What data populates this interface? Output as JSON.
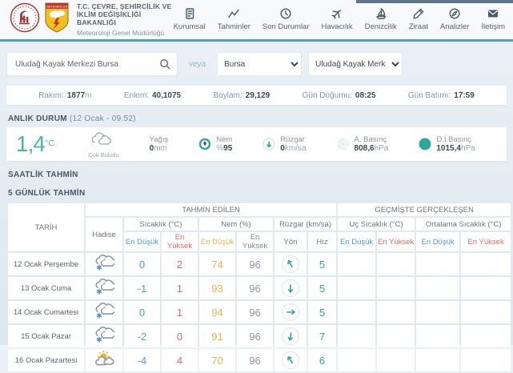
{
  "brand": {
    "ministry": "T.C. ÇEVRE, ŞEHİRCİLİK VE İKLİM DEĞİŞİKLİĞİ BAKANLIĞI",
    "agency": "Meteoroloji Genel Müdürlüğü",
    "shield_text": "METEOROLOJİ"
  },
  "nav": {
    "items": [
      {
        "label": "Kurumsal",
        "icon": "building-icon"
      },
      {
        "label": "Tahminler",
        "icon": "chart-icon"
      },
      {
        "label": "Son Durumlar",
        "icon": "clock-icon"
      },
      {
        "label": "Havacılık",
        "icon": "plane-icon"
      },
      {
        "label": "Denizcilik",
        "icon": "sailboat-icon"
      },
      {
        "label": "Ziraat",
        "icon": "pencil-icon"
      },
      {
        "label": "Analizler",
        "icon": "compass-icon"
      },
      {
        "label": "İletişim",
        "icon": "mail-icon"
      }
    ]
  },
  "search": {
    "value": "Uludağ Kayak Merkezi Bursa",
    "separator": "veya",
    "city_selected": "Bursa",
    "station_selected": "Uludağ Kayak Merkezi"
  },
  "infobar": {
    "items": [
      {
        "label": "Rakım:",
        "value": "1877",
        "unit": "m"
      },
      {
        "label": "Enlem:",
        "value": "40,1075",
        "unit": ""
      },
      {
        "label": "Boylam:",
        "value": "29,129",
        "unit": ""
      },
      {
        "label": "Gün Doğumu:",
        "value": "08:25",
        "unit": ""
      },
      {
        "label": "Gün Batımı:",
        "value": "17:59",
        "unit": ""
      }
    ]
  },
  "current": {
    "title": "ANLIK DURUM",
    "subtitle": "(12 Ocak - 09.52)",
    "temperature": "1,4",
    "temperature_unit": "°C",
    "condition": "Çok Bulutlu",
    "condition_icon": "cloudy-icon",
    "metrics": [
      {
        "label": "Yağış",
        "prefix": "",
        "value": "0",
        "unit": "mm",
        "icon": ""
      },
      {
        "label": "Nem",
        "prefix": "%",
        "value": "95",
        "unit": "",
        "icon": "humidity-icon"
      },
      {
        "label": "Rüzgar",
        "prefix": "",
        "value": "0",
        "unit": "km/sa",
        "icon": "wind-icon"
      },
      {
        "label": "A. Basınç",
        "prefix": "",
        "value": "808,6",
        "unit": "hPa",
        "icon": "pressure-icon"
      },
      {
        "label": "D.İ.Basınç",
        "prefix": "",
        "value": "1015,4",
        "unit": "hPa",
        "icon": "sea-pressure-icon"
      }
    ]
  },
  "sections": {
    "hourly_title": "SAATLİK TAHMİN",
    "daily_title": "5 GÜNLÜK TAHMİN"
  },
  "forecast": {
    "headers": {
      "tarih": "TARİH",
      "tahmin_edilen": "TAHMİN EDİLEN",
      "gecmiste": "GEÇMİŞTE GERÇEKLEŞEN",
      "hadise": "Hadise",
      "sicaklik": "Sıcaklık (°C)",
      "nem": "Nem (%)",
      "ruzgar": "Rüzgar (km/sa)",
      "uc_sicaklik": "Uç Sıcaklık (°C)",
      "ortalama_sicaklik": "Ortalama Sıcaklık (°C)",
      "en_dusuk": "En Düşük",
      "en_yuksek": "En Yüksek",
      "yon": "Yön",
      "hiz": "Hız"
    },
    "rows": [
      {
        "date": "12 Ocak Perşembe",
        "condition_icon": "snowy-cloud-icon",
        "temp_min": "0",
        "temp_max": "2",
        "hum_min": "74",
        "hum_max": "96",
        "wind_dir_deg": -30,
        "wind_speed": "5"
      },
      {
        "date": "13 Ocak Cuma",
        "condition_icon": "snowy-cloud-icon",
        "temp_min": "-1",
        "temp_max": "1",
        "hum_min": "93",
        "hum_max": "96",
        "wind_dir_deg": 180,
        "wind_speed": "5"
      },
      {
        "date": "14 Ocak Cumartesi",
        "condition_icon": "snowy-cloud-icon",
        "temp_min": "0",
        "temp_max": "1",
        "hum_min": "94",
        "hum_max": "96",
        "wind_dir_deg": 90,
        "wind_speed": "5"
      },
      {
        "date": "15 Ocak Pazar",
        "condition_icon": "snowy-cloud-icon",
        "temp_min": "-2",
        "temp_max": "0",
        "hum_min": "91",
        "hum_max": "96",
        "wind_dir_deg": 188,
        "wind_speed": "7"
      },
      {
        "date": "16 Ocak Pazartesi",
        "condition_icon": "partly-sunny-icon",
        "temp_min": "-4",
        "temp_max": "4",
        "hum_min": "70",
        "hum_max": "96",
        "wind_dir_deg": -32,
        "wind_speed": "6"
      }
    ]
  },
  "colors": {
    "accent_teal": "#2fa69b",
    "header_border_teal": "#4aa3ad",
    "min_blue": "#4a9bd8",
    "max_red": "#dd6a6a",
    "hum_min_amber": "#e5b54e",
    "hum_max_purple": "#988db0",
    "page_bg": "#dde7ee"
  }
}
